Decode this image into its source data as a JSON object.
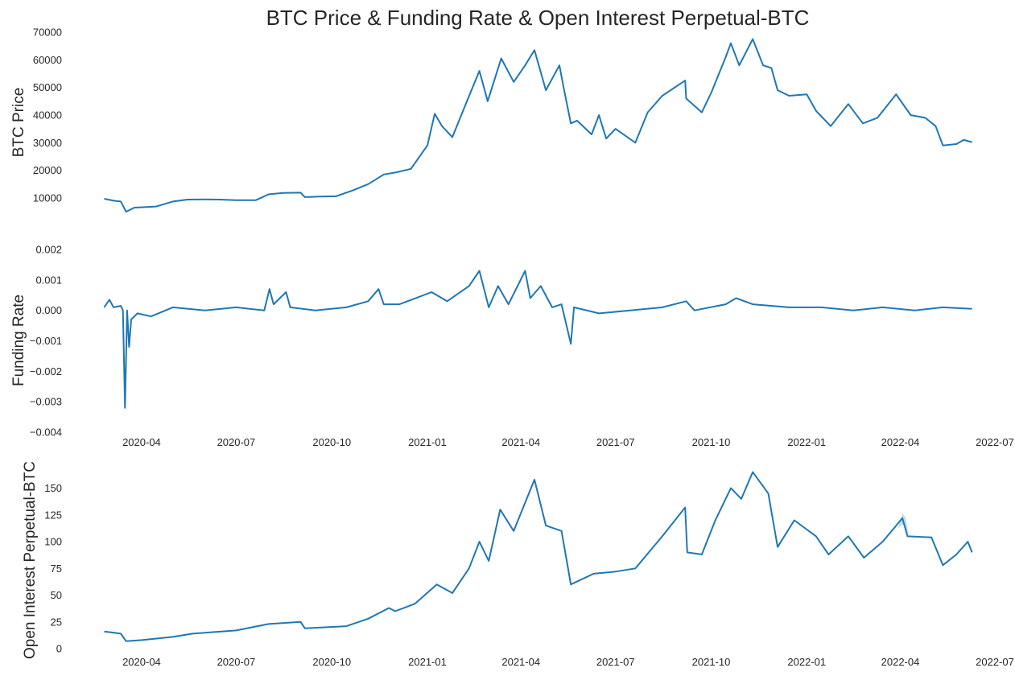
{
  "title": "BTC Price & Funding Rate & Open Interest Perpetual-BTC",
  "colors": {
    "line": "#1f77b4",
    "band": "#9ec5e6",
    "text": "#262626",
    "background": "#ffffff"
  },
  "chart_data": [
    {
      "type": "line",
      "ylabel": "BTC  Price",
      "ylim": [
        3000,
        70000
      ],
      "yticks": [
        "10000",
        "20000",
        "30000",
        "40000",
        "50000",
        "60000",
        "70000"
      ],
      "xlim": [
        "2020-02-20",
        "2022-07-01"
      ],
      "xticks": [],
      "grid": false,
      "series": [
        {
          "points": [
            [
              "2020-02-25",
              9700
            ],
            [
              "2020-03-05",
              9000
            ],
            [
              "2020-03-12",
              8700
            ],
            [
              "2020-03-17",
              5000
            ],
            [
              "2020-03-25",
              6500
            ],
            [
              "2020-04-15",
              6900
            ],
            [
              "2020-05-01",
              8700
            ],
            [
              "2020-05-15",
              9400
            ],
            [
              "2020-06-01",
              9500
            ],
            [
              "2020-06-15",
              9400
            ],
            [
              "2020-07-01",
              9200
            ],
            [
              "2020-07-20",
              9200
            ],
            [
              "2020-08-01",
              11300
            ],
            [
              "2020-08-15",
              11800
            ],
            [
              "2020-09-01",
              11900
            ],
            [
              "2020-09-05",
              10300
            ],
            [
              "2020-09-20",
              10500
            ],
            [
              "2020-10-05",
              10600
            ],
            [
              "2020-10-21",
              12700
            ],
            [
              "2020-11-05",
              15000
            ],
            [
              "2020-11-20",
              18500
            ],
            [
              "2020-12-01",
              19200
            ],
            [
              "2020-12-16",
              20500
            ],
            [
              "2021-01-01",
              29000
            ],
            [
              "2021-01-08",
              40500
            ],
            [
              "2021-01-15",
              36000
            ],
            [
              "2021-01-25",
              32000
            ],
            [
              "2021-02-08",
              45000
            ],
            [
              "2021-02-20",
              56000
            ],
            [
              "2021-02-28",
              45000
            ],
            [
              "2021-03-13",
              60500
            ],
            [
              "2021-03-25",
              52000
            ],
            [
              "2021-04-05",
              58000
            ],
            [
              "2021-04-14",
              63500
            ],
            [
              "2021-04-25",
              49000
            ],
            [
              "2021-05-08",
              58000
            ],
            [
              "2021-05-12",
              50000
            ],
            [
              "2021-05-19",
              37000
            ],
            [
              "2021-05-25",
              38000
            ],
            [
              "2021-06-08",
              33000
            ],
            [
              "2021-06-15",
              40000
            ],
            [
              "2021-06-22",
              31500
            ],
            [
              "2021-07-01",
              35000
            ],
            [
              "2021-07-20",
              30000
            ],
            [
              "2021-08-01",
              41000
            ],
            [
              "2021-08-15",
              47000
            ],
            [
              "2021-09-06",
              52500
            ],
            [
              "2021-09-07",
              46000
            ],
            [
              "2021-09-22",
              41000
            ],
            [
              "2021-10-01",
              48000
            ],
            [
              "2021-10-15",
              61000
            ],
            [
              "2021-10-20",
              66000
            ],
            [
              "2021-10-28",
              58000
            ],
            [
              "2021-11-10",
              67500
            ],
            [
              "2021-11-20",
              58000
            ],
            [
              "2021-11-28",
              57000
            ],
            [
              "2021-12-04",
              49000
            ],
            [
              "2021-12-15",
              47000
            ],
            [
              "2022-01-01",
              47500
            ],
            [
              "2022-01-10",
              41500
            ],
            [
              "2022-01-24",
              36000
            ],
            [
              "2022-02-10",
              44000
            ],
            [
              "2022-02-24",
              37000
            ],
            [
              "2022-03-10",
              39000
            ],
            [
              "2022-03-28",
              47500
            ],
            [
              "2022-04-11",
              40000
            ],
            [
              "2022-04-25",
              39000
            ],
            [
              "2022-05-05",
              36000
            ],
            [
              "2022-05-12",
              29000
            ],
            [
              "2022-05-25",
              29500
            ],
            [
              "2022-06-01",
              31000
            ],
            [
              "2022-06-09",
              30200
            ]
          ]
        }
      ]
    },
    {
      "type": "line",
      "ylabel": "Funding Rate",
      "ylim": [
        -0.004,
        0.002
      ],
      "yticks": [
        "−0.004",
        "−0.003",
        "−0.002",
        "−0.001",
        "0.000",
        "0.001",
        "0.002"
      ],
      "xlim": [
        "2020-02-20",
        "2022-07-01"
      ],
      "xticks": [
        "2020-04",
        "2020-07",
        "2020-10",
        "2021-01",
        "2021-04",
        "2021-07",
        "2021-10",
        "2022-01",
        "2022-04",
        "2022-07"
      ],
      "grid": false,
      "series": [
        {
          "points": [
            [
              "2020-02-25",
              0.0001
            ],
            [
              "2020-03-01",
              0.00035
            ],
            [
              "2020-03-05",
              0.0001
            ],
            [
              "2020-03-12",
              0.00015
            ],
            [
              "2020-03-14",
              0.0
            ],
            [
              "2020-03-16",
              -0.0032
            ],
            [
              "2020-03-18",
              0.0
            ],
            [
              "2020-03-20",
              -0.0012
            ],
            [
              "2020-03-22",
              -0.0003
            ],
            [
              "2020-03-28",
              -0.0001
            ],
            [
              "2020-04-10",
              -0.0002
            ],
            [
              "2020-05-01",
              0.0001
            ],
            [
              "2020-06-01",
              0.0
            ],
            [
              "2020-07-01",
              0.0001
            ],
            [
              "2020-07-28",
              0.0
            ],
            [
              "2020-08-02",
              0.0007
            ],
            [
              "2020-08-06",
              0.0002
            ],
            [
              "2020-08-18",
              0.0006
            ],
            [
              "2020-08-22",
              0.0001
            ],
            [
              "2020-09-15",
              0.0
            ],
            [
              "2020-10-15",
              0.0001
            ],
            [
              "2020-11-05",
              0.0003
            ],
            [
              "2020-11-15",
              0.0007
            ],
            [
              "2020-11-20",
              0.0002
            ],
            [
              "2020-12-05",
              0.0002
            ],
            [
              "2021-01-05",
              0.0006
            ],
            [
              "2021-01-20",
              0.0003
            ],
            [
              "2021-02-10",
              0.0008
            ],
            [
              "2021-02-20",
              0.0013
            ],
            [
              "2021-03-01",
              0.0001
            ],
            [
              "2021-03-10",
              0.0008
            ],
            [
              "2021-03-20",
              0.0002
            ],
            [
              "2021-04-05",
              0.0013
            ],
            [
              "2021-04-10",
              0.0004
            ],
            [
              "2021-04-20",
              0.0008
            ],
            [
              "2021-05-01",
              0.0001
            ],
            [
              "2021-05-10",
              0.0002
            ],
            [
              "2021-05-19",
              -0.0011
            ],
            [
              "2021-05-22",
              0.0001
            ],
            [
              "2021-06-15",
              -0.0001
            ],
            [
              "2021-07-15",
              0.0
            ],
            [
              "2021-08-15",
              0.0001
            ],
            [
              "2021-09-07",
              0.0003
            ],
            [
              "2021-09-15",
              0.0
            ],
            [
              "2021-10-15",
              0.0002
            ],
            [
              "2021-10-25",
              0.0004
            ],
            [
              "2021-11-10",
              0.0002
            ],
            [
              "2021-12-15",
              0.0001
            ],
            [
              "2022-01-15",
              0.0001
            ],
            [
              "2022-02-15",
              0.0
            ],
            [
              "2022-03-15",
              0.0001
            ],
            [
              "2022-04-15",
              0.0
            ],
            [
              "2022-05-12",
              0.0001
            ],
            [
              "2022-06-09",
              5e-05
            ]
          ]
        }
      ]
    },
    {
      "type": "line",
      "ylabel": "Open Interest Perpetual-BTC",
      "ylim": [
        0,
        170
      ],
      "yticks": [
        "0",
        "25",
        "50",
        "75",
        "100",
        "125",
        "150"
      ],
      "xlim": [
        "2020-02-20",
        "2022-07-01"
      ],
      "xticks": [
        "2020-04",
        "2020-07",
        "2020-10",
        "2021-01",
        "2021-04",
        "2021-07",
        "2021-10",
        "2022-01",
        "2022-04",
        "2022-07"
      ],
      "grid": false,
      "series": [
        {
          "points": [
            [
              "2020-02-25",
              16
            ],
            [
              "2020-03-05",
              15
            ],
            [
              "2020-03-12",
              14
            ],
            [
              "2020-03-17",
              7
            ],
            [
              "2020-04-01",
              8
            ],
            [
              "2020-05-01",
              11
            ],
            [
              "2020-05-20",
              14
            ],
            [
              "2020-07-01",
              17
            ],
            [
              "2020-08-01",
              23
            ],
            [
              "2020-09-01",
              25
            ],
            [
              "2020-09-05",
              19
            ],
            [
              "2020-10-15",
              21
            ],
            [
              "2020-11-05",
              28
            ],
            [
              "2020-11-25",
              38
            ],
            [
              "2020-12-01",
              35
            ],
            [
              "2020-12-20",
              42
            ],
            [
              "2021-01-10",
              60
            ],
            [
              "2021-01-25",
              52
            ],
            [
              "2021-02-10",
              75
            ],
            [
              "2021-02-20",
              100
            ],
            [
              "2021-03-01",
              82
            ],
            [
              "2021-03-12",
              130
            ],
            [
              "2021-03-25",
              110
            ],
            [
              "2021-04-14",
              158
            ],
            [
              "2021-04-25",
              115
            ],
            [
              "2021-05-10",
              110
            ],
            [
              "2021-05-19",
              60
            ],
            [
              "2021-06-10",
              70
            ],
            [
              "2021-07-01",
              72
            ],
            [
              "2021-07-20",
              75
            ],
            [
              "2021-08-15",
              105
            ],
            [
              "2021-09-06",
              132
            ],
            [
              "2021-09-08",
              90
            ],
            [
              "2021-09-22",
              88
            ],
            [
              "2021-10-05",
              120
            ],
            [
              "2021-10-20",
              150
            ],
            [
              "2021-10-30",
              140
            ],
            [
              "2021-11-10",
              165
            ],
            [
              "2021-11-25",
              145
            ],
            [
              "2021-12-04",
              95
            ],
            [
              "2021-12-20",
              120
            ],
            [
              "2022-01-10",
              105
            ],
            [
              "2022-01-22",
              88
            ],
            [
              "2022-02-10",
              105
            ],
            [
              "2022-02-25",
              85
            ],
            [
              "2022-03-15",
              100
            ],
            [
              "2022-04-03",
              122
            ],
            [
              "2022-04-08",
              105
            ],
            [
              "2022-05-01",
              104
            ],
            [
              "2022-05-12",
              78
            ],
            [
              "2022-05-25",
              88
            ],
            [
              "2022-06-05",
              100
            ],
            [
              "2022-06-09",
              90
            ]
          ],
          "band": [
            [
              "2022-03-30",
              112,
              112
            ],
            [
              "2022-04-03",
              116,
              126
            ],
            [
              "2022-04-06",
              113,
              123
            ],
            [
              "2022-04-09",
              106,
              106
            ]
          ]
        }
      ]
    }
  ]
}
